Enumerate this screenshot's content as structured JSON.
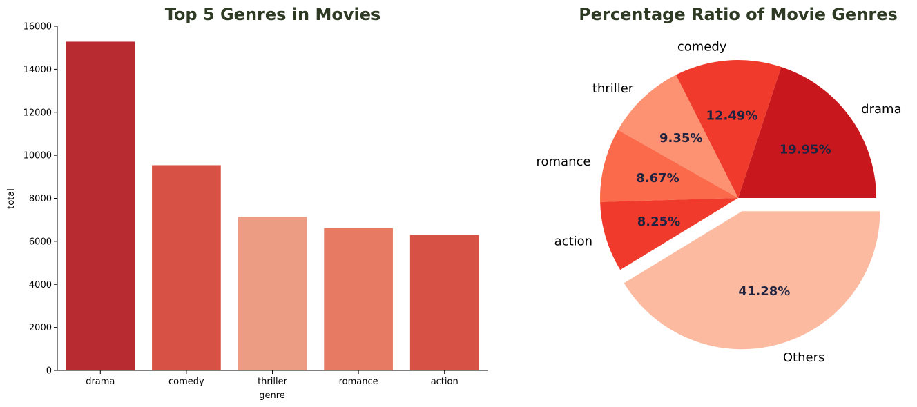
{
  "chart_data": [
    {
      "type": "bar",
      "title": "Top 5 Genres in Movies",
      "xlabel": "genre",
      "ylabel": "total",
      "categories": [
        "drama",
        "comedy",
        "thriller",
        "romance",
        "action"
      ],
      "values": [
        15280,
        9540,
        7140,
        6620,
        6300
      ],
      "colors": [
        "#b72b31",
        "#d75245",
        "#ec9c82",
        "#e67a62",
        "#d75245"
      ],
      "ylim": [
        0,
        16000
      ],
      "yticks": [
        "0",
        "2000",
        "4000",
        "6000",
        "8000",
        "10000",
        "12000",
        "14000",
        "16000"
      ],
      "grid": false
    },
    {
      "type": "pie",
      "title": "Percentage Ratio of Movie Genres",
      "labels": [
        "drama",
        "comedy",
        "thriller",
        "romance",
        "action",
        "Others"
      ],
      "values": [
        19.95,
        12.49,
        9.35,
        8.67,
        8.25,
        41.28
      ],
      "pct_labels": [
        "19.95%",
        "12.49%",
        "9.35%",
        "8.67%",
        "8.25%",
        "41.28%"
      ],
      "colors": [
        "#c9181d",
        "#ef3a2c",
        "#fc9272",
        "#fb6b4b",
        "#ef3a2c",
        "#fcbba1"
      ],
      "exploded": [
        "Others"
      ]
    }
  ]
}
